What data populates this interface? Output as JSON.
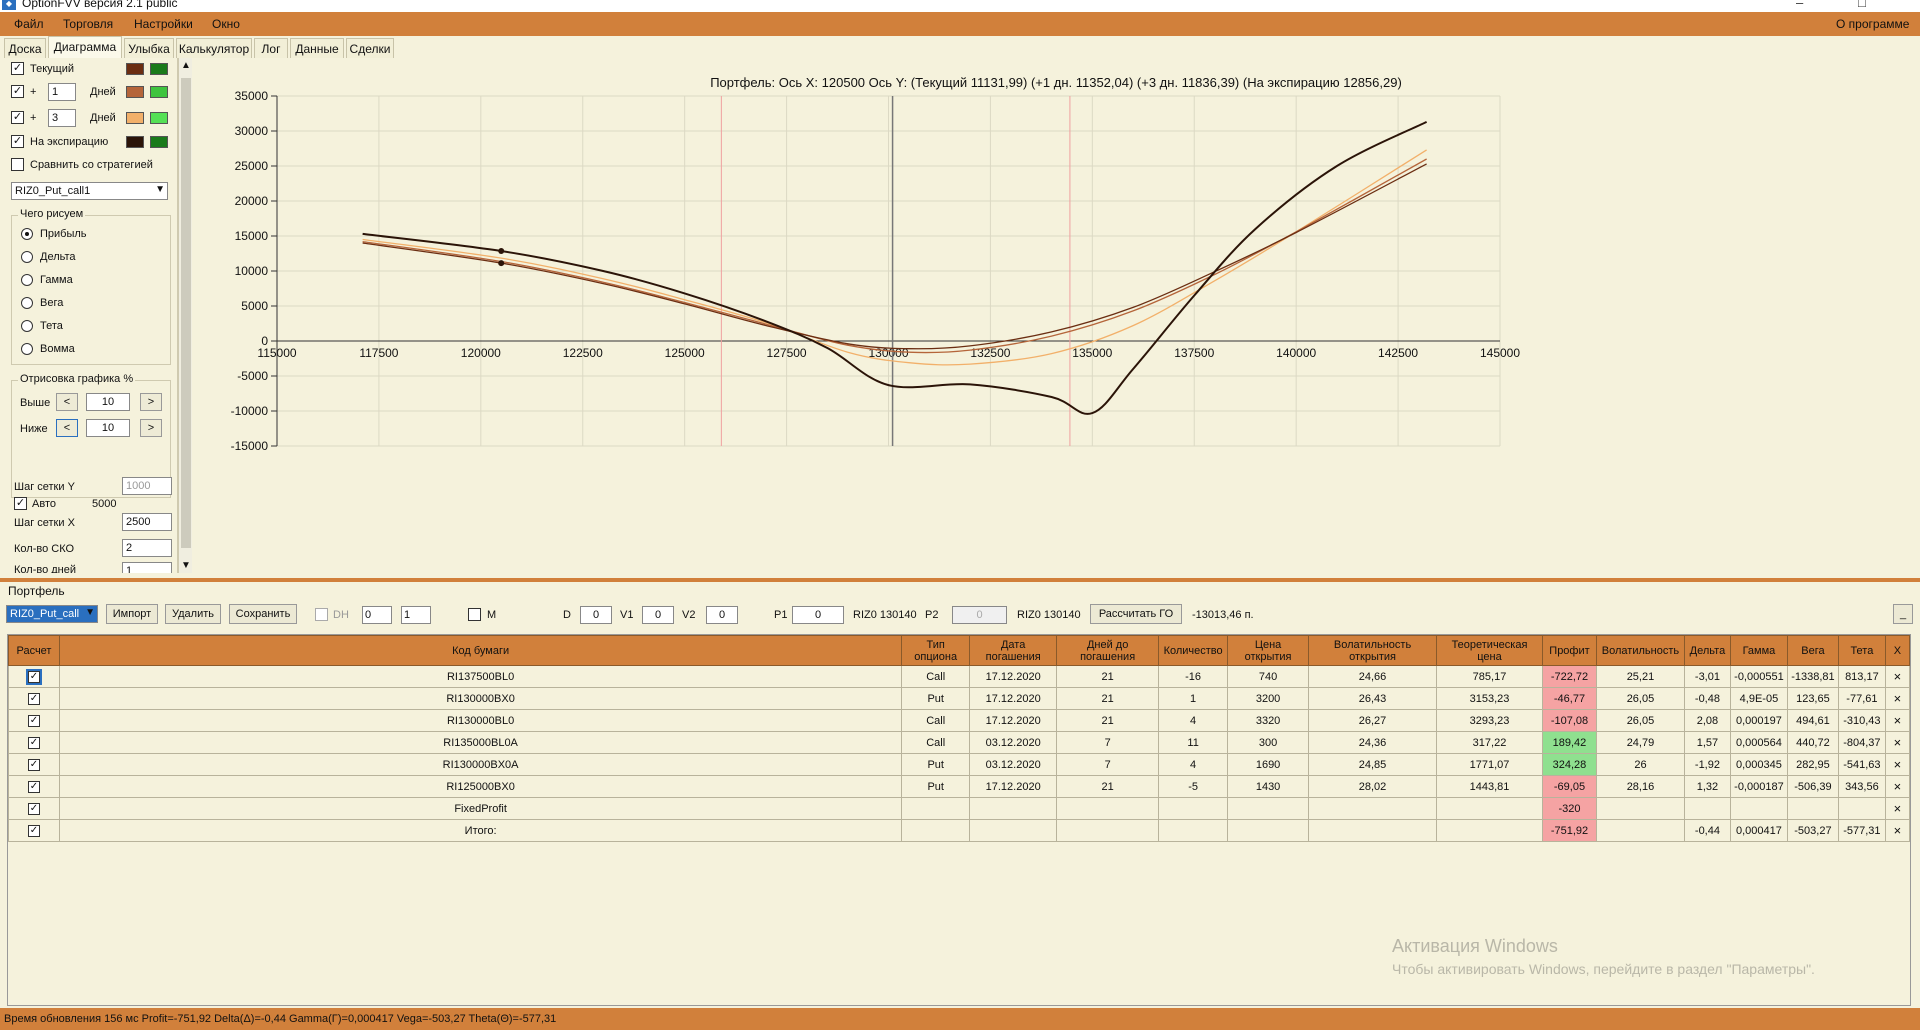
{
  "window": {
    "title": "OptionFVV версия 2.1 public",
    "minimize": "–",
    "maximize": "□"
  },
  "menu": {
    "file": "Файл",
    "trade": "Торговля",
    "settings": "Настройки",
    "window": "Окно",
    "about": "О программе"
  },
  "tabs": [
    "Доска",
    "Диаграмма",
    "Улыбка",
    "Калькулятор",
    "Лог",
    "Данные",
    "Сделки"
  ],
  "left": {
    "current": "Текущий",
    "plus": "+",
    "days": "Дней",
    "days1": "1",
    "days3": "3",
    "expiry": "На экспирацию",
    "compare": "Сравнить со стратегией",
    "strategy": "RIZ0_Put_call1",
    "what_title": "Чего рисуем",
    "radios": [
      "Прибыль",
      "Дельта",
      "Гамма",
      "Вега",
      "Тета",
      "Вомма"
    ],
    "draw_title": "Отрисовка графика %",
    "above": "Выше",
    "below": "Ниже",
    "above_val": "10",
    "below_val": "10",
    "lt": "<",
    "gt": ">",
    "grid_y": "Шаг сетки Y",
    "grid_y_val": "1000",
    "auto": "Авто",
    "auto_val": "5000",
    "grid_x": "Шаг сетки X",
    "grid_x_val": "2500",
    "sko": "Кол-во СКО",
    "sko_val": "2",
    "days_count": "Кол-во дней",
    "days_count_val": "1",
    "colors": {
      "current": [
        "#6b2e12",
        "#1a7a1a"
      ],
      "d1": [
        "#b5653a",
        "#3fc43f"
      ],
      "d3": [
        "#f2b06a",
        "#55e055"
      ],
      "expiry": [
        "#2b1408",
        "#1a7a1a"
      ]
    }
  },
  "chart_data": {
    "type": "line",
    "title": "Портфель: Ось X: 120500 Ось Y:  (Текущий 11131,99)  (+1 дн. 11352,04)  (+3 дн. 11836,39)  (На экспирацию 12856,29)",
    "xlim": [
      115000,
      145000
    ],
    "ylim": [
      -15000,
      35000
    ],
    "x_ticks": [
      "115000",
      "117500",
      "120000",
      "122500",
      "125000",
      "127500",
      "130000",
      "132500",
      "135000",
      "137500",
      "140000",
      "142500",
      "145000"
    ],
    "y_ticks": [
      "35000",
      "30000",
      "25000",
      "20000",
      "15000",
      "10000",
      "5000",
      "0",
      "-5000",
      "-10000",
      "-15000"
    ],
    "grid": true,
    "vlines_red": [
      125900,
      134450
    ],
    "vline_dark": 130100,
    "series": [
      {
        "color": "#2b1408",
        "x": [
          117100,
          120500,
          123000,
          125000,
          127000,
          128500,
          130000,
          132000,
          134000,
          135000,
          136000,
          137500,
          139000,
          141000,
          143200
        ],
        "y": [
          15300,
          12856,
          10000,
          6800,
          2800,
          -1000,
          -6300,
          -6200,
          -8000,
          -10300,
          -4000,
          6500,
          16000,
          25000,
          31300
        ]
      },
      {
        "color": "#6b2e12",
        "x": [
          117100,
          120500,
          123000,
          125000,
          127000,
          129000,
          130500,
          132000,
          134000,
          136000,
          138000,
          140000,
          143200
        ],
        "y": [
          14000,
          11132,
          8200,
          5300,
          2200,
          -400,
          -1100,
          -700,
          1300,
          4800,
          9900,
          15500,
          25300
        ]
      },
      {
        "color": "#b5653a",
        "x": [
          117100,
          120500,
          123000,
          125000,
          127000,
          129000,
          130500,
          132000,
          134000,
          136000,
          138000,
          140000,
          143200
        ],
        "y": [
          14200,
          11352,
          8400,
          5500,
          2400,
          -600,
          -1600,
          -1300,
          700,
          4300,
          9500,
          15600,
          26000
        ]
      },
      {
        "color": "#f2b06a",
        "x": [
          117100,
          120500,
          123000,
          125000,
          127000,
          129000,
          130500,
          132000,
          134000,
          136000,
          138000,
          140000,
          143200
        ],
        "y": [
          14500,
          11836,
          8900,
          5900,
          2600,
          -1600,
          -3100,
          -3300,
          -1800,
          2200,
          8600,
          15600,
          27300
        ]
      }
    ],
    "markers": [
      {
        "x": 120500,
        "y": 12856
      },
      {
        "x": 120500,
        "y": 11132
      }
    ]
  },
  "portfolio_label": "Портфель",
  "toolbar": {
    "portfolio": "RIZ0_Put_call",
    "import": "Импорт",
    "delete": "Удалить",
    "save": "Сохранить",
    "dh": "DH",
    "dh1": "0",
    "dh2": "1",
    "m": "M",
    "d": "D",
    "d_val": "0",
    "v1": "V1",
    "v1_val": "0",
    "v2": "V2",
    "v2_val": "0",
    "p1": "P1",
    "p1_val": "0",
    "sec1": "RIZ0 130140",
    "p2": "P2",
    "p2_val": "0",
    "sec2": "RIZ0 130140",
    "calc_go": "Рассчитать ГО",
    "go_value": "-13013,46 п.",
    "small": "_"
  },
  "table": {
    "headers": [
      "Расчет",
      "Код бумаги",
      "Тип опциона",
      "Дата погашения",
      "Дней до погашения",
      "Количество",
      "Цена открытия",
      "Волатильность открытия",
      "Теоретическая цена",
      "Профит",
      "Волатильность",
      "Дельта",
      "Гамма",
      "Вега",
      "Тета",
      "X"
    ],
    "rows": [
      [
        "RI137500BL0",
        "Call",
        "17.12.2020",
        "21",
        "-16",
        "740",
        "24,66",
        "785,17",
        "-722,72",
        "25,21",
        "-3,01",
        "-0,000551",
        "-1338,81",
        "813,17"
      ],
      [
        "RI130000BX0",
        "Put",
        "17.12.2020",
        "21",
        "1",
        "3200",
        "26,43",
        "3153,23",
        "-46,77",
        "26,05",
        "-0,48",
        "4,9E-05",
        "123,65",
        "-77,61"
      ],
      [
        "RI130000BL0",
        "Call",
        "17.12.2020",
        "21",
        "4",
        "3320",
        "26,27",
        "3293,23",
        "-107,08",
        "26,05",
        "2,08",
        "0,000197",
        "494,61",
        "-310,43"
      ],
      [
        "RI135000BL0A",
        "Call",
        "03.12.2020",
        "7",
        "11",
        "300",
        "24,36",
        "317,22",
        "189,42",
        "24,79",
        "1,57",
        "0,000564",
        "440,72",
        "-804,37"
      ],
      [
        "RI130000BX0A",
        "Put",
        "03.12.2020",
        "7",
        "4",
        "1690",
        "24,85",
        "1771,07",
        "324,28",
        "26",
        "-1,92",
        "0,000345",
        "282,95",
        "-541,63"
      ],
      [
        "RI125000BX0",
        "Put",
        "17.12.2020",
        "21",
        "-5",
        "1430",
        "28,02",
        "1443,81",
        "-69,05",
        "28,16",
        "1,32",
        "-0,000187",
        "-506,39",
        "343,56"
      ],
      [
        "FixedProfit",
        "",
        "",
        "",
        "",
        "",
        "",
        "",
        "-320",
        "",
        "",
        "",
        "",
        ""
      ],
      [
        "Итого:",
        "",
        "",
        "",
        "",
        "",
        "",
        "",
        "-751,92",
        "",
        "-0,44",
        "0,000417",
        "-503,27",
        "-577,31"
      ]
    ],
    "profit_colors": [
      "red",
      "red",
      "red",
      "green",
      "green",
      "red",
      "red",
      "red"
    ],
    "check": "✓",
    "x": "×"
  },
  "watermark": {
    "line1": "Активация Windows",
    "line2": "Чтобы активировать Windows, перейдите в раздел \"Параметры\"."
  },
  "status": "Время обновления 156 мс  Profit=-751,92 Delta(Δ)=-0,44 Gamma(Γ)=0,000417 Vega=-503,27 Theta(Θ)=-577,31"
}
